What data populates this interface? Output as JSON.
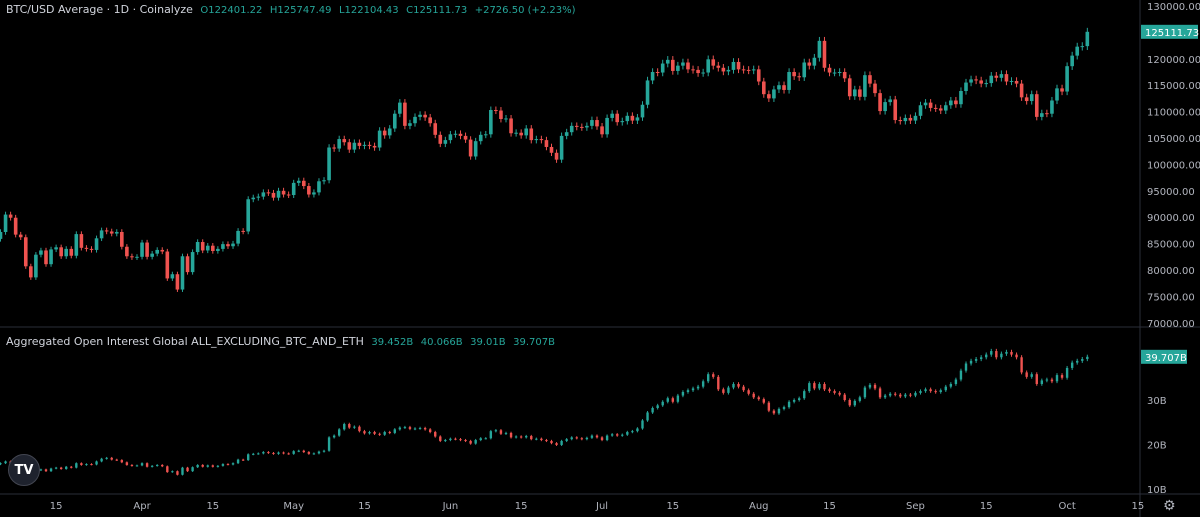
{
  "price_legend": {
    "title": "BTC/USD Average · 1D · Coinalyze",
    "open": "O122401.22",
    "high": "H125747.49",
    "low": "L122104.43",
    "close": "C125111.73",
    "change": "+2726.50 (+2.23%)"
  },
  "oi_legend": {
    "title": "Aggregated Open Interest Global ALL_EXCLUDING_BTC_AND_ETH",
    "open": "39.452B",
    "high": "40.066B",
    "low": "39.01B",
    "close": "39.707B"
  },
  "colors": {
    "up": "#26a69a",
    "down": "#ef5350",
    "background": "#000000",
    "last_tag": "#26a69a"
  },
  "icons": {
    "logo": "tradingview-logo",
    "settings": "gear-icon"
  },
  "logo_text": "TV",
  "chart_data": [
    {
      "type": "candlestick",
      "title": "BTC/USD Average · 1D · Coinalyze",
      "start_date": "2025-03-04",
      "interval": "1D",
      "ylim": [
        70000,
        130000
      ],
      "y_ticks": [
        "130000.00",
        "120000.00",
        "115000.00",
        "110000.00",
        "105000.00",
        "100000.00",
        "95000.00",
        "90000.00",
        "85000.00",
        "80000.00",
        "75000.00",
        "70000.00"
      ],
      "last_value_label": "125111.73",
      "last_value": 125111.73,
      "close": [
        87200,
        90500,
        89900,
        86700,
        86200,
        80700,
        78600,
        82900,
        83700,
        81100,
        83900,
        84300,
        82600,
        84000,
        82700,
        86800,
        84200,
        84000,
        83800,
        86000,
        87500,
        87300,
        86900,
        87200,
        84400,
        82600,
        82400,
        82500,
        85200,
        82500,
        83100,
        83800,
        83500,
        78400,
        79200,
        76300,
        82600,
        79600,
        83400,
        85300,
        83700,
        84600,
        83600,
        84000,
        84900,
        84500,
        85000,
        87400,
        87300,
        93400,
        93700,
        93900,
        94700,
        94600,
        93700,
        95000,
        94300,
        94200,
        96500,
        96900,
        95900,
        94300,
        94700,
        96800,
        97000,
        103200,
        103000,
        104800,
        104200,
        102800,
        104100,
        103500,
        103700,
        103500,
        103200,
        106400,
        105500,
        106800,
        109600,
        111700,
        107300,
        107800,
        109000,
        109400,
        108900,
        107800,
        105600,
        103900,
        104600,
        105700,
        105800,
        105400,
        104700,
        101500,
        104400,
        105600,
        105700,
        110300,
        110200,
        108600,
        108700,
        105900,
        106000,
        105500,
        106800,
        104600,
        104800,
        104600,
        103300,
        102200,
        100900,
        105400,
        106100,
        107300,
        107100,
        107000,
        107300,
        108400,
        107200,
        105700,
        108800,
        109600,
        108000,
        108200,
        109200,
        108300,
        108900,
        111300,
        115900,
        117500,
        117400,
        119100,
        119800,
        117700,
        118700,
        119300,
        118000,
        117900,
        117300,
        117400,
        119900,
        118700,
        118300,
        117600,
        117900,
        119400,
        118000,
        117900,
        117800,
        118000,
        115700,
        113300,
        112500,
        114200,
        115000,
        114100,
        117500,
        116700,
        116500,
        119300,
        118700,
        120200,
        123400,
        118300,
        117400,
        117400,
        117500,
        116300,
        112900,
        114200,
        112800,
        116900,
        115300,
        113500,
        110100,
        111800,
        112300,
        108400,
        108200,
        108800,
        108300,
        109200,
        111200,
        111700,
        110700,
        110600,
        110200,
        111200,
        112100,
        111400,
        113900,
        115500,
        116100,
        115900,
        115300,
        115400,
        116800,
        116400,
        117100,
        115700,
        115800,
        115300,
        112700,
        112000,
        113300,
        109000,
        109700,
        109600,
        112100,
        114400,
        113800,
        118600,
        120600,
        122300,
        122400,
        125111.73
      ]
    },
    {
      "type": "candlestick",
      "title": "Aggregated Open Interest Global ALL_EXCLUDING_BTC_AND_ETH",
      "unit": "B",
      "start_date": "2025-03-04",
      "ylim": [
        10,
        45
      ],
      "y_ticks": [
        "30B",
        "20B",
        "10B"
      ],
      "last_value_label": "39.707B",
      "last_value": 39.707,
      "close": [
        15.8,
        16.2,
        15.6,
        15.2,
        15.0,
        14.0,
        13.6,
        14.2,
        14.4,
        14.0,
        14.6,
        14.8,
        14.5,
        15.0,
        14.8,
        15.8,
        15.4,
        15.6,
        15.5,
        16.2,
        16.8,
        17.0,
        16.6,
        16.5,
        16.0,
        15.4,
        15.2,
        15.3,
        15.8,
        15.0,
        15.2,
        15.4,
        15.1,
        13.8,
        14.0,
        13.2,
        14.8,
        14.0,
        14.9,
        15.4,
        15.0,
        15.3,
        15.0,
        15.2,
        15.6,
        15.5,
        15.8,
        16.6,
        16.5,
        17.8,
        17.9,
        18.0,
        18.3,
        18.1,
        17.9,
        18.2,
        18.0,
        17.9,
        18.5,
        18.6,
        18.3,
        17.9,
        18.0,
        18.4,
        18.6,
        21.6,
        22.0,
        23.4,
        24.6,
        23.8,
        24.0,
        23.0,
        22.5,
        22.8,
        22.4,
        22.2,
        22.8,
        22.6,
        23.4,
        23.8,
        23.9,
        23.5,
        23.6,
        23.7,
        23.4,
        22.8,
        21.8,
        20.8,
        21.0,
        21.3,
        21.2,
        21.0,
        20.8,
        20.2,
        21.0,
        21.4,
        21.4,
        23.0,
        23.2,
        22.4,
        22.6,
        21.6,
        21.8,
        21.6,
        21.9,
        21.2,
        21.3,
        21.0,
        20.8,
        20.3,
        19.9,
        20.8,
        21.2,
        21.6,
        21.4,
        21.2,
        21.5,
        22.0,
        21.6,
        21.0,
        22.0,
        22.3,
        22.0,
        22.2,
        22.8,
        23.0,
        23.6,
        25.4,
        27.2,
        28.2,
        28.8,
        29.6,
        30.4,
        29.6,
        31.0,
        31.8,
        32.2,
        32.6,
        33.0,
        34.2,
        35.8,
        35.2,
        32.4,
        31.6,
        32.8,
        33.6,
        33.0,
        32.2,
        31.4,
        30.6,
        30.2,
        29.4,
        27.6,
        27.0,
        28.0,
        28.4,
        29.6,
        30.0,
        30.4,
        32.0,
        33.8,
        32.6,
        33.6,
        32.4,
        32.0,
        31.6,
        31.2,
        30.0,
        28.8,
        29.8,
        30.6,
        32.8,
        33.4,
        32.6,
        30.6,
        31.0,
        31.4,
        31.2,
        30.8,
        31.2,
        31.0,
        31.6,
        32.0,
        32.4,
        32.0,
        31.8,
        32.2,
        33.0,
        33.6,
        34.6,
        36.6,
        38.2,
        38.8,
        39.2,
        39.6,
        40.2,
        41.0,
        39.6,
        40.4,
        40.8,
        40.2,
        39.6,
        36.2,
        35.2,
        35.8,
        33.6,
        34.4,
        34.6,
        34.2,
        35.6,
        35.0,
        37.2,
        38.4,
        38.8,
        39.2,
        39.707
      ]
    }
  ],
  "x_axis": {
    "labels": [
      {
        "text": "15",
        "date": "2025-03-15"
      },
      {
        "text": "Apr",
        "date": "2025-04-01"
      },
      {
        "text": "15",
        "date": "2025-04-15"
      },
      {
        "text": "May",
        "date": "2025-05-01"
      },
      {
        "text": "15",
        "date": "2025-05-15"
      },
      {
        "text": "Jun",
        "date": "2025-06-01"
      },
      {
        "text": "15",
        "date": "2025-06-15"
      },
      {
        "text": "Jul",
        "date": "2025-07-01"
      },
      {
        "text": "15",
        "date": "2025-07-15"
      },
      {
        "text": "Aug",
        "date": "2025-08-01"
      },
      {
        "text": "15",
        "date": "2025-08-15"
      },
      {
        "text": "Sep",
        "date": "2025-09-01"
      },
      {
        "text": "15",
        "date": "2025-09-15"
      },
      {
        "text": "Oct",
        "date": "2025-10-01"
      },
      {
        "text": "15",
        "date": "2025-10-15"
      }
    ]
  }
}
